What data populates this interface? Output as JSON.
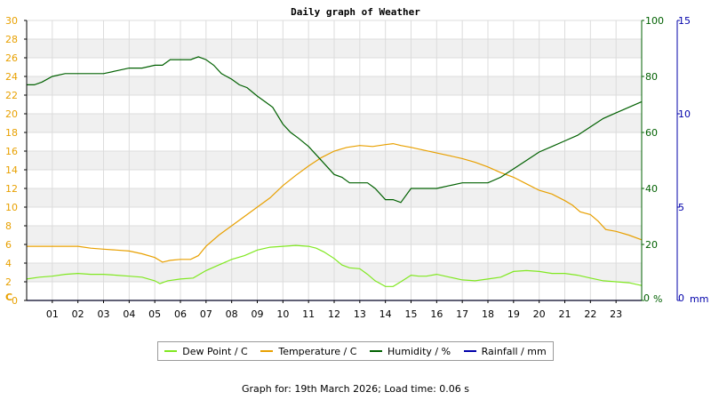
{
  "chart_data": {
    "type": "line",
    "title": "Daily graph of Weather",
    "x_ticks": [
      "01",
      "02",
      "03",
      "04",
      "05",
      "06",
      "07",
      "08",
      "09",
      "10",
      "11",
      "12",
      "13",
      "14",
      "15",
      "16",
      "17",
      "18",
      "19",
      "20",
      "21",
      "22",
      "23"
    ],
    "xlim": [
      0,
      24
    ],
    "axes": {
      "left": {
        "unit": "C",
        "ticks": [
          0,
          2,
          4,
          6,
          8,
          10,
          12,
          14,
          16,
          18,
          20,
          22,
          24,
          26,
          28,
          30
        ],
        "range": [
          0,
          30
        ],
        "color": "#e8a000"
      },
      "right1": {
        "unit": "%",
        "ticks": [
          0,
          20,
          40,
          60,
          80,
          100
        ],
        "range": [
          0,
          100
        ],
        "color": "#006000"
      },
      "right2": {
        "unit": "mm",
        "ticks": [
          0,
          5,
          10,
          15
        ],
        "range": [
          0,
          15
        ],
        "color": "#0000aa"
      }
    },
    "grid": true,
    "legend_position": "bottom",
    "series": [
      {
        "name": "Dew Point / C",
        "axis": "left",
        "color": "#80e820",
        "x": [
          0,
          0.5,
          1,
          1.5,
          2,
          2.5,
          3,
          3.5,
          4,
          4.5,
          5,
          5.2,
          5.5,
          6,
          6.5,
          7,
          7.5,
          8,
          8.5,
          9,
          9.5,
          10,
          10.5,
          11,
          11.3,
          11.6,
          12,
          12.3,
          12.6,
          13,
          13.3,
          13.6,
          14,
          14.3,
          14.6,
          15,
          15.3,
          15.6,
          16,
          16.5,
          17,
          17.5,
          18,
          18.5,
          19,
          19.5,
          20,
          20.5,
          21,
          21.5,
          22,
          22.5,
          23,
          23.5,
          24
        ],
        "y": [
          2.3,
          2.5,
          2.6,
          2.8,
          2.9,
          2.8,
          2.8,
          2.7,
          2.6,
          2.5,
          2.1,
          1.8,
          2.1,
          2.3,
          2.4,
          3.2,
          3.8,
          4.4,
          4.8,
          5.4,
          5.7,
          5.8,
          5.9,
          5.8,
          5.6,
          5.2,
          4.5,
          3.8,
          3.5,
          3.4,
          2.8,
          2.1,
          1.5,
          1.5,
          2.0,
          2.7,
          2.6,
          2.6,
          2.8,
          2.5,
          2.2,
          2.1,
          2.3,
          2.5,
          3.1,
          3.2,
          3.1,
          2.9,
          2.9,
          2.7,
          2.4,
          2.1,
          2.0,
          1.9,
          1.6
        ]
      },
      {
        "name": "Temperature / C",
        "axis": "left",
        "color": "#e8a000",
        "x": [
          0,
          0.5,
          1,
          1.5,
          2,
          2.5,
          3,
          3.5,
          4,
          4.5,
          5,
          5.3,
          5.6,
          6,
          6.4,
          6.7,
          7,
          7.5,
          8,
          8.5,
          9,
          9.5,
          10,
          10.5,
          11,
          11.5,
          12,
          12.5,
          13,
          13.5,
          14,
          14.3,
          14.6,
          15,
          15.5,
          16,
          16.5,
          17,
          17.5,
          18,
          18.5,
          19,
          19.5,
          20,
          20.5,
          21,
          21.3,
          21.6,
          22,
          22.3,
          22.6,
          23,
          23.5,
          24
        ],
        "y": [
          5.8,
          5.8,
          5.8,
          5.8,
          5.8,
          5.6,
          5.5,
          5.4,
          5.3,
          5.0,
          4.6,
          4.1,
          4.3,
          4.4,
          4.4,
          4.8,
          5.8,
          7.0,
          8.0,
          9.0,
          10.0,
          11.0,
          12.3,
          13.4,
          14.4,
          15.3,
          16.0,
          16.4,
          16.6,
          16.5,
          16.7,
          16.8,
          16.6,
          16.4,
          16.1,
          15.8,
          15.5,
          15.2,
          14.8,
          14.3,
          13.7,
          13.2,
          12.5,
          11.8,
          11.4,
          10.7,
          10.2,
          9.5,
          9.2,
          8.5,
          7.6,
          7.4,
          7.0,
          6.5
        ]
      },
      {
        "name": "Humidity / %",
        "axis": "right1",
        "color": "#006000",
        "x": [
          0,
          0.3,
          0.6,
          1,
          1.5,
          2,
          2.5,
          3,
          3.5,
          4,
          4.5,
          5,
          5.3,
          5.6,
          6,
          6.4,
          6.7,
          7,
          7.3,
          7.6,
          8,
          8.3,
          8.6,
          9,
          9.3,
          9.6,
          10,
          10.3,
          10.6,
          11,
          11.3,
          11.6,
          12,
          12.3,
          12.6,
          13,
          13.3,
          13.6,
          14,
          14.3,
          14.6,
          15,
          15.5,
          16,
          16.5,
          17,
          17.5,
          18,
          18.5,
          19,
          19.5,
          20,
          20.5,
          21,
          21.5,
          22,
          22.5,
          23,
          23.5,
          24
        ],
        "y": [
          77,
          77,
          78,
          80,
          81,
          81,
          81,
          81,
          82,
          83,
          83,
          84,
          84,
          86,
          86,
          86,
          87,
          86,
          84,
          81,
          79,
          77,
          76,
          73,
          71,
          69,
          63,
          60,
          58,
          55,
          52,
          49,
          45,
          44,
          42,
          42,
          42,
          40,
          36,
          36,
          35,
          40,
          40,
          40,
          41,
          42,
          42,
          42,
          44,
          47,
          50,
          53,
          55,
          57,
          59,
          62,
          65,
          67,
          69,
          71
        ]
      },
      {
        "name": "Rainfall / mm",
        "axis": "right2",
        "color": "#0000aa",
        "x": [
          0,
          24
        ],
        "y": [
          0,
          0
        ]
      }
    ]
  },
  "footer": {
    "text": "Graph for: 19th March 2026; Load time: 0.06 s"
  }
}
